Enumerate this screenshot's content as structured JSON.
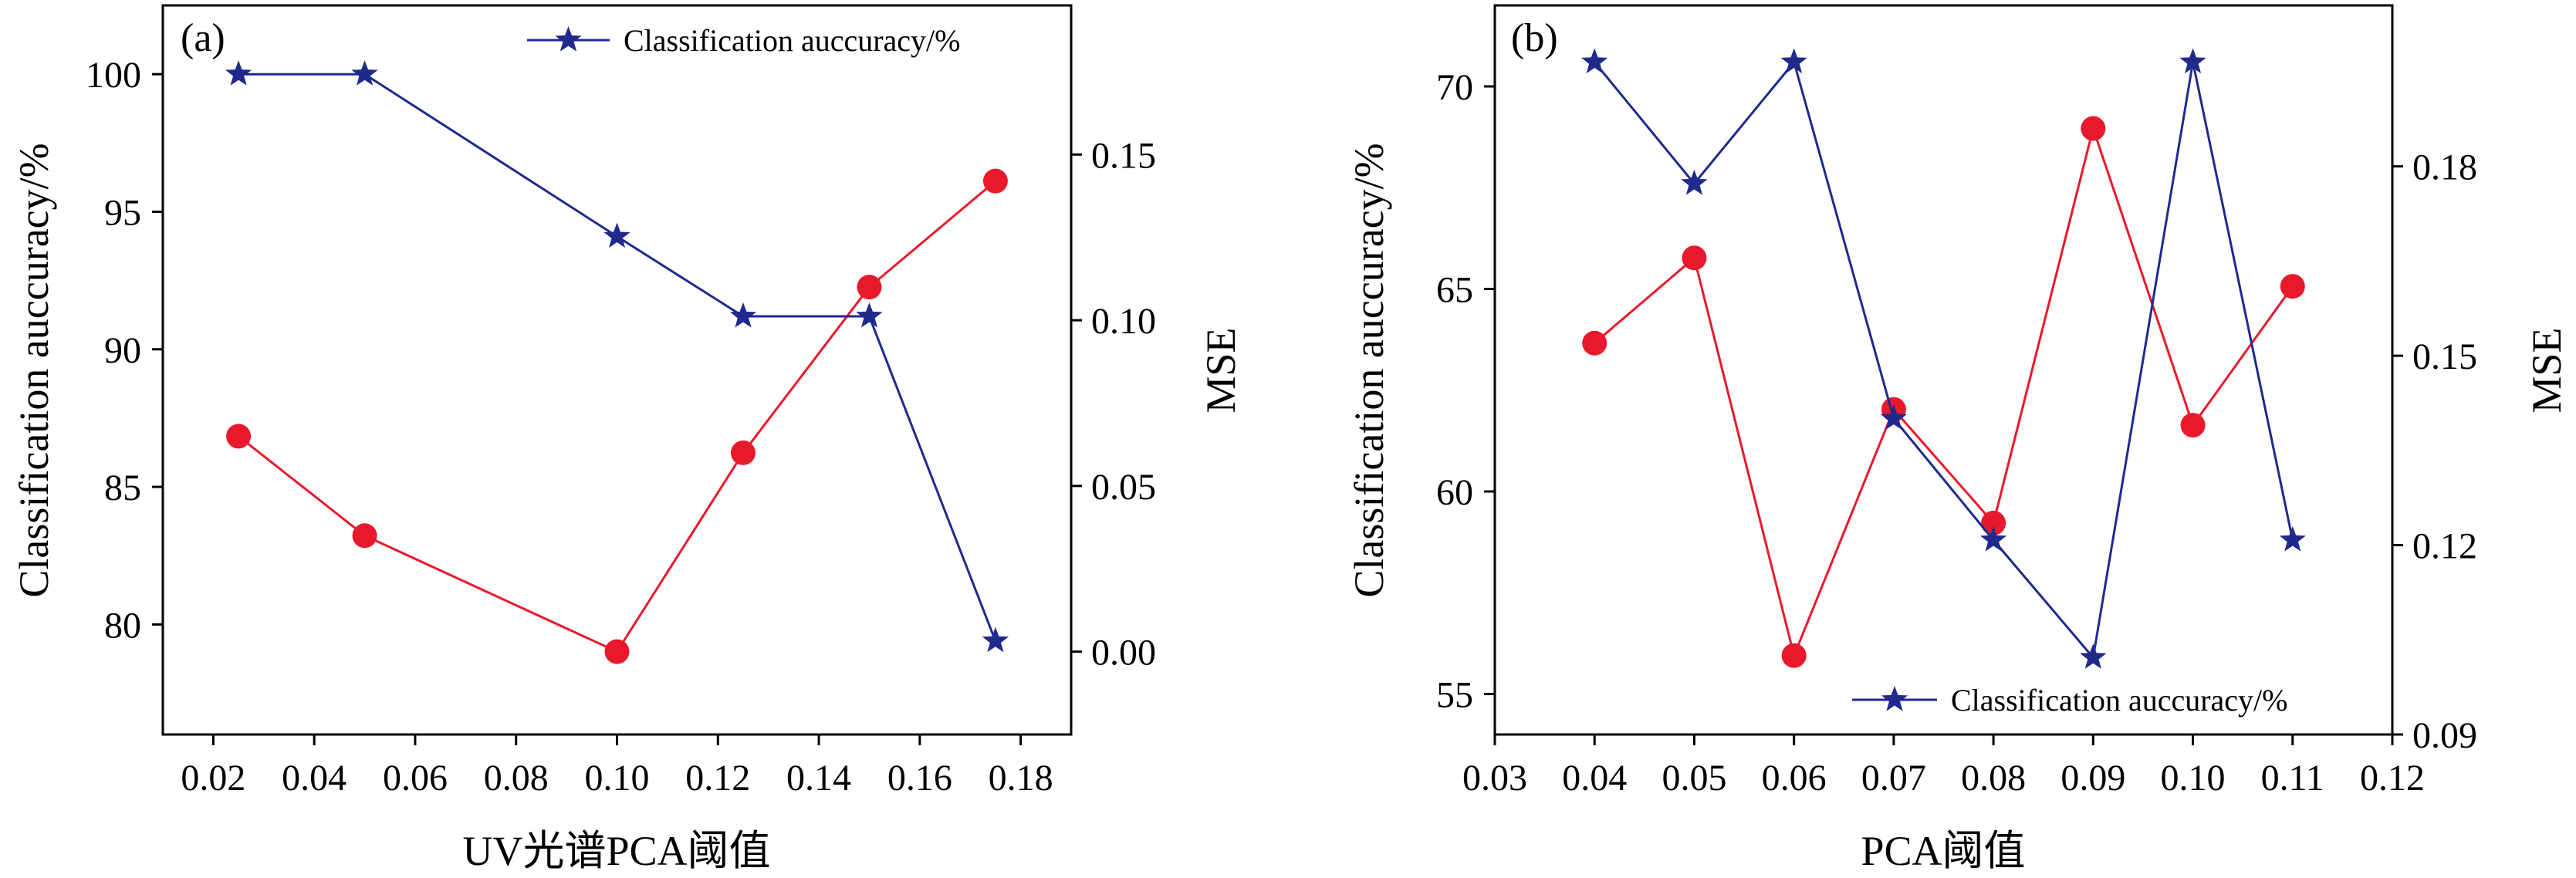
{
  "chart_data": [
    {
      "type": "line",
      "panel_label": "(a)",
      "xlabel": "UV光谱PCA阈值",
      "ylabel_left": "Classification auccuracy/%",
      "ylabel_right": "MSE",
      "xlim": [
        0.01,
        0.19
      ],
      "ylim_left": [
        76,
        102.5
      ],
      "ylim_right": [
        -0.025,
        0.195
      ],
      "xticks": [
        "0.02",
        "0.04",
        "0.06",
        "0.08",
        "0.10",
        "0.12",
        "0.14",
        "0.16",
        "0.18"
      ],
      "yticks_left": [
        "80",
        "85",
        "90",
        "95",
        "100"
      ],
      "yticks_right": [
        "0.00",
        "0.05",
        "0.10",
        "0.15"
      ],
      "legend": {
        "label": "Classification auccuracy/%",
        "location": "top-right"
      },
      "series": [
        {
          "name": "Classification auccuracy/%",
          "axis": "left",
          "marker": "star",
          "color": "#1f2a8c",
          "x": [
            0.025,
            0.05,
            0.1,
            0.125,
            0.15,
            0.175
          ],
          "y": [
            100.0,
            100.0,
            94.1,
            91.2,
            91.2,
            79.4
          ]
        },
        {
          "axis": "right",
          "marker": "circle",
          "color": "#e8192c",
          "x": [
            0.025,
            0.05,
            0.1,
            0.125,
            0.15,
            0.175
          ],
          "y": [
            0.065,
            0.035,
            0.0,
            0.06,
            0.11,
            0.142
          ]
        }
      ]
    },
    {
      "type": "line",
      "panel_label": "(b)",
      "xlabel": "PCA阈值",
      "ylabel_left": "Classification auccuracy/%",
      "ylabel_right": "MSE",
      "xlim": [
        0.03,
        0.12
      ],
      "ylim_left": [
        54.0,
        72.0
      ],
      "ylim_right": [
        0.09,
        0.2055
      ],
      "xticks": [
        "0.03",
        "0.04",
        "0.05",
        "0.06",
        "0.07",
        "0.08",
        "0.09",
        "0.10",
        "0.11",
        "0.12"
      ],
      "yticks_left": [
        "55",
        "60",
        "65",
        "70"
      ],
      "yticks_right": [
        "0.09",
        "0.12",
        "0.15",
        "0.18"
      ],
      "legend": {
        "label": "Classification auccuracy/%",
        "location": "bottom-right"
      },
      "series": [
        {
          "name": "Classification auccuracy/%",
          "axis": "left",
          "marker": "star",
          "color": "#1f2a8c",
          "x": [
            0.04,
            0.05,
            0.06,
            0.07,
            0.08,
            0.09,
            0.1,
            0.11
          ],
          "y": [
            70.6,
            67.6,
            70.6,
            61.8,
            58.8,
            55.9,
            70.6,
            58.8
          ]
        },
        {
          "axis": "right",
          "marker": "circle",
          "color": "#e8192c",
          "x": [
            0.04,
            0.05,
            0.06,
            0.07,
            0.08,
            0.09,
            0.1,
            0.11
          ],
          "y": [
            0.152,
            0.1655,
            0.1025,
            0.1415,
            0.1235,
            0.186,
            0.139,
            0.161
          ]
        }
      ]
    }
  ]
}
